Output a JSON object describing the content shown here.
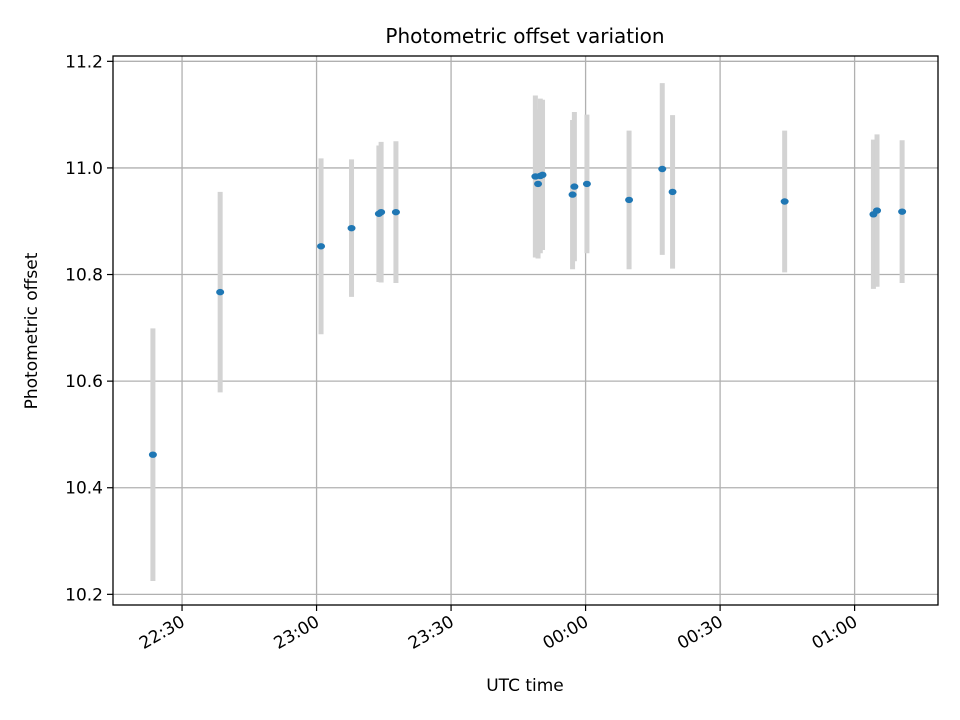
{
  "chart_data": {
    "type": "scatter",
    "title": "Photometric offset variation",
    "xlabel": "UTC time",
    "ylabel": "Photometric offset",
    "x_ticks": [
      "22:30",
      "23:00",
      "23:30",
      "00:00",
      "00:30",
      "01:00"
    ],
    "x_tick_minutes": [
      -90,
      -60,
      -30,
      0,
      30,
      60
    ],
    "xlim_minutes": [
      -105.4,
      78.6
    ],
    "y_ticks": [
      "10.2",
      "10.4",
      "10.6",
      "10.8",
      "11.0",
      "11.2"
    ],
    "ylim": [
      10.18,
      11.21
    ],
    "grid": true,
    "colors": {
      "points": "#1f77b4",
      "errorbars": "#d3d3d3",
      "grid": "#b0b0b0"
    },
    "points": [
      {
        "t": -96.5,
        "y": 10.462,
        "err": 0.237
      },
      {
        "t": -81.5,
        "y": 10.767,
        "err": 0.188
      },
      {
        "t": -59.0,
        "y": 10.853,
        "err": 0.165
      },
      {
        "t": -52.2,
        "y": 10.887,
        "err": 0.129
      },
      {
        "t": -46.1,
        "y": 10.914,
        "err": 0.128
      },
      {
        "t": -45.6,
        "y": 10.917,
        "err": 0.132
      },
      {
        "t": -42.3,
        "y": 10.917,
        "err": 0.133
      },
      {
        "t": -11.2,
        "y": 10.984,
        "err": 0.152
      },
      {
        "t": -10.6,
        "y": 10.97,
        "err": 0.14
      },
      {
        "t": -10.1,
        "y": 10.985,
        "err": 0.145
      },
      {
        "t": -9.6,
        "y": 10.987,
        "err": 0.141
      },
      {
        "t": -2.9,
        "y": 10.95,
        "err": 0.14
      },
      {
        "t": -2.5,
        "y": 10.965,
        "err": 0.14
      },
      {
        "t": 0.3,
        "y": 10.97,
        "err": 0.13
      },
      {
        "t": 9.7,
        "y": 10.94,
        "err": 0.13
      },
      {
        "t": 17.1,
        "y": 10.998,
        "err": 0.161
      },
      {
        "t": 19.4,
        "y": 10.955,
        "err": 0.144
      },
      {
        "t": 44.4,
        "y": 10.937,
        "err": 0.133
      },
      {
        "t": 64.2,
        "y": 10.913,
        "err": 0.14
      },
      {
        "t": 65.0,
        "y": 10.92,
        "err": 0.143
      },
      {
        "t": 70.6,
        "y": 10.918,
        "err": 0.134
      }
    ]
  }
}
